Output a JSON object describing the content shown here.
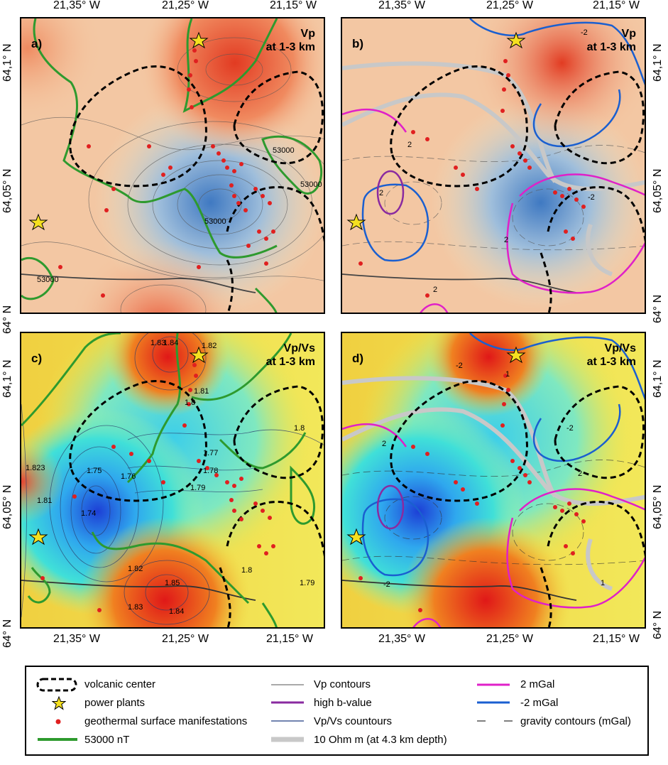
{
  "axes": {
    "top_x": [
      "21,35° W",
      "21,25° W",
      "21,15° W"
    ],
    "bottom_x": [
      "21,35° W",
      "21,25° W",
      "21,15° W"
    ],
    "left_y": [
      "64,1° N",
      "64,05° N",
      "64° N"
    ],
    "right_y": [
      "64,1° N",
      "64,05° N",
      "64° N"
    ]
  },
  "panels": [
    {
      "id": "a",
      "label": "a)",
      "title_line1": "Vp",
      "title_line2": "at 1-3 km",
      "contour_labels": [
        "53000",
        "53000",
        "53000",
        "53000"
      ]
    },
    {
      "id": "b",
      "label": "b)",
      "title_line1": "Vp",
      "title_line2": "at 1-3 km",
      "contour_labels": [
        "-2",
        "2",
        "2",
        "2",
        "-2",
        "2"
      ]
    },
    {
      "id": "c",
      "label": "c)",
      "title_line1": "Vp/Vs",
      "title_line2": "at 1-3 km",
      "contour_labels": [
        "1.83",
        "1.84",
        "1.82",
        "1.81",
        "1.8",
        "1.77",
        "1.78",
        "1.79",
        "1.75",
        "1.76",
        "1.74",
        "1.823",
        "1.81",
        "1.82",
        "1.83",
        "1.85",
        "1.84",
        "1.8",
        "1.8",
        "1.79"
      ]
    },
    {
      "id": "d",
      "label": "d)",
      "title_line1": "Vp/Vs",
      "title_line2": "at 1-3 km",
      "contour_labels": [
        "-2",
        "1",
        "-2",
        "2",
        "-2",
        "2",
        "1"
      ]
    }
  ],
  "legend": {
    "volcanic_center": "volcanic center",
    "power_plants": "power plants",
    "geothermal": "geothermal surface manifestations",
    "magnetic": "53000 nT",
    "vp_contours": "Vp contours",
    "high_b": "high b-value",
    "vpvs_contours": "Vp/Vs countours",
    "resistivity": "10 Ohm m (at 4.3 km depth)",
    "pos_gravity": "2 mGal",
    "neg_gravity": "-2 mGal",
    "gravity_contours": "gravity contours (mGal)"
  },
  "colors": {
    "magnetic_green": "#2e9a2e",
    "volcanic_black": "#000000",
    "pos_gravity_magenta": "#e020c8",
    "neg_gravity_blue": "#1a5fd0",
    "high_b_purple": "#8a2aa0",
    "resistivity_gray": "#c8c8c8",
    "manifestation_red": "#e02020",
    "power_plant_yellow": "#f5e020"
  }
}
